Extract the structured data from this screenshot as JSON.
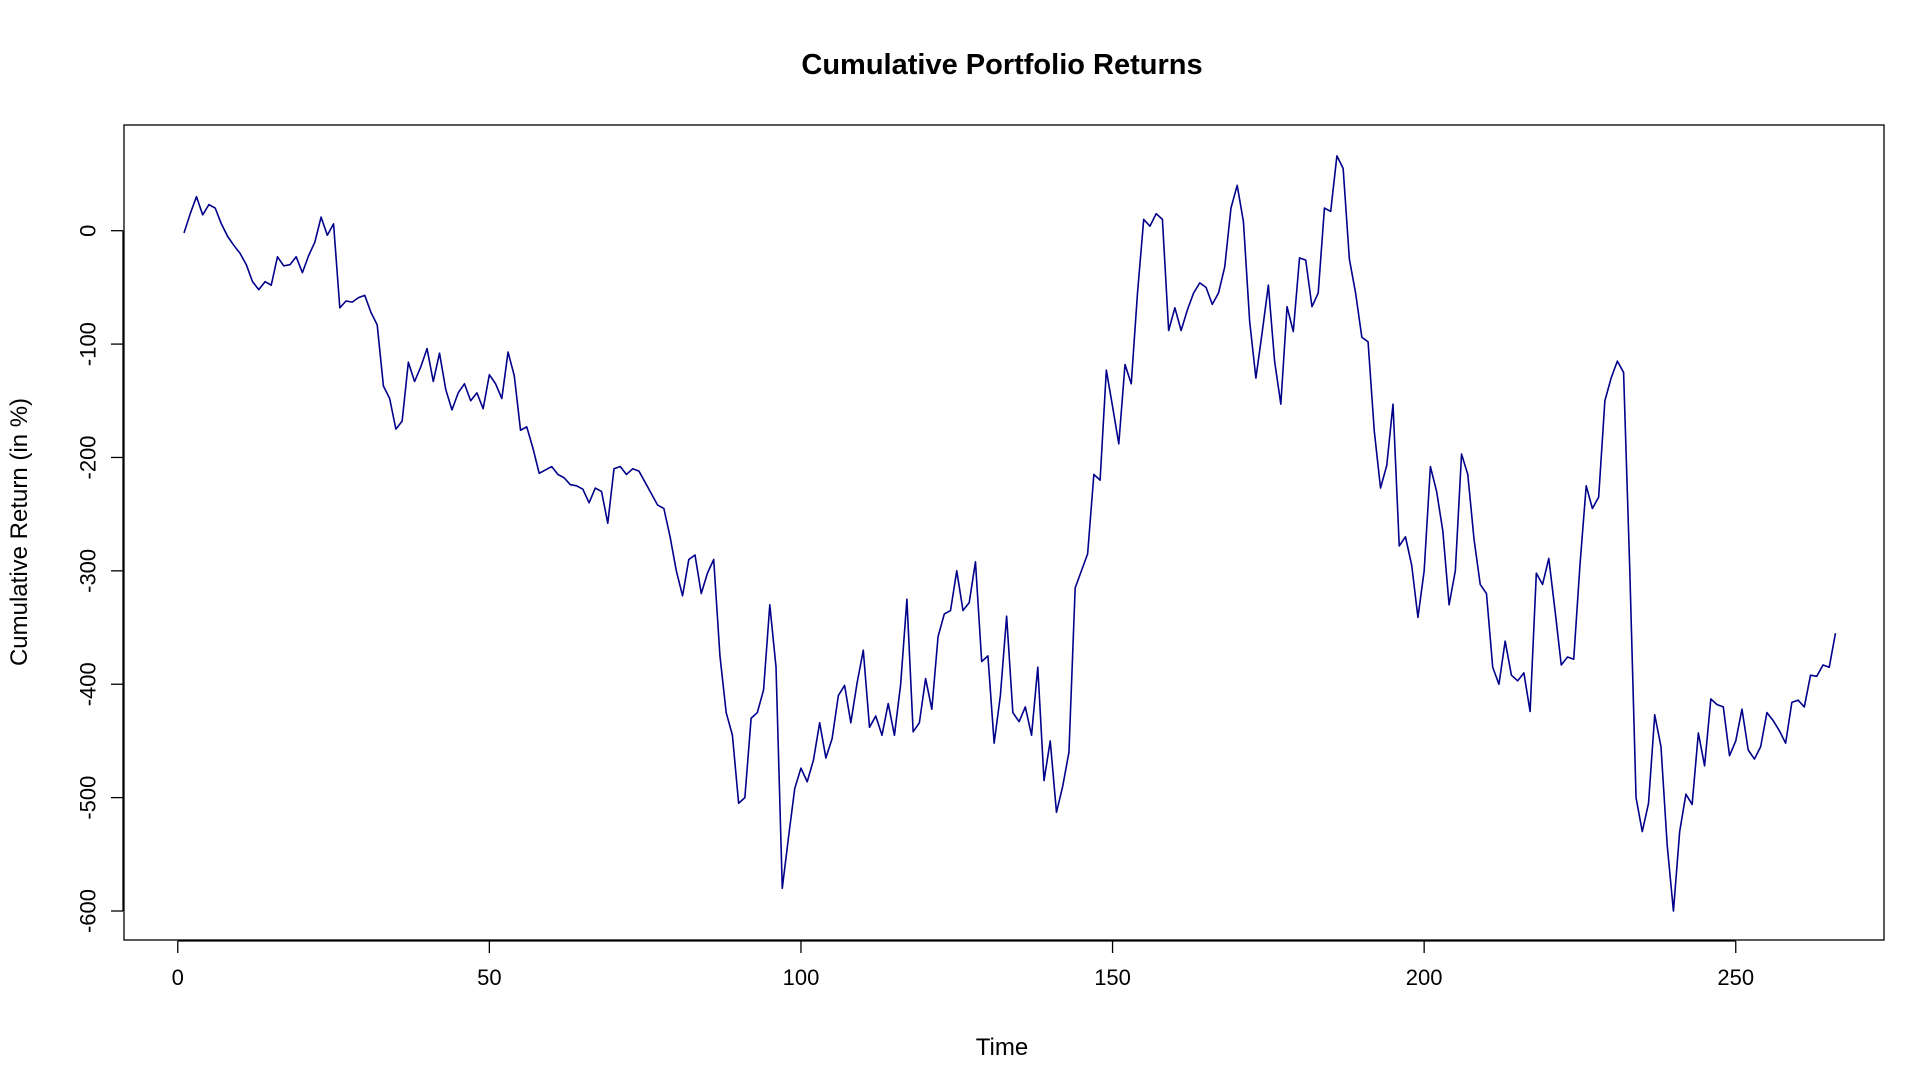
{
  "chart_data": {
    "type": "line",
    "title": "Cumulative Portfolio Returns",
    "xlabel": "Time",
    "ylabel": "Cumulative Return (in %)",
    "xlim": [
      1,
      264
    ],
    "ylim": [
      -600,
      65
    ],
    "xticks": [
      0,
      50,
      100,
      150,
      200,
      250
    ],
    "yticks": [
      0,
      -100,
      -200,
      -300,
      -400,
      -500,
      -600
    ],
    "grid": false,
    "legend": "none",
    "line_color": "#00008B",
    "series": [
      {
        "x_start": 1,
        "values": [
          -2,
          15,
          30,
          14,
          23,
          20,
          6,
          -5,
          -13,
          -20,
          -30,
          -45,
          -52,
          -45,
          -48,
          -23,
          -31,
          -30,
          -23,
          -37,
          -22,
          -10,
          12,
          -4,
          6,
          -68,
          -62,
          -63,
          -59,
          -57,
          -72,
          -83,
          -137,
          -148,
          -175,
          -168,
          -116,
          -133,
          -120,
          -104,
          -133,
          -108,
          -140,
          -158,
          -143,
          -135,
          -150,
          -143,
          -157,
          -127,
          -135,
          -148,
          -107,
          -128,
          -176,
          -173,
          -192,
          -214,
          -211,
          -208,
          -215,
          -218,
          -224,
          -225,
          -228,
          -240,
          -227,
          -230,
          -258,
          -210,
          -208,
          -215,
          -210,
          -212,
          -222,
          -232,
          -242,
          -245,
          -270,
          -300,
          -322,
          -290,
          -286,
          -320,
          -302,
          -290,
          -375,
          -425,
          -445,
          -505,
          -500,
          -430,
          -425,
          -405,
          -330,
          -385,
          -580,
          -535,
          -492,
          -474,
          -486,
          -467,
          -434,
          -465,
          -448,
          -410,
          -401,
          -434,
          -399,
          -370,
          -438,
          -428,
          -445,
          -417,
          -445,
          -400,
          -325,
          -442,
          -434,
          -395,
          -422,
          -358,
          -338,
          -335,
          -300,
          -335,
          -328,
          -292,
          -380,
          -375,
          -452,
          -410,
          -340,
          -425,
          -433,
          -420,
          -445,
          -385,
          -485,
          -450,
          -513,
          -490,
          -460,
          -315,
          -300,
          -285,
          -215,
          -220,
          -123,
          -155,
          -188,
          -118,
          -135,
          -55,
          10,
          4,
          15,
          10,
          -88,
          -68,
          -88,
          -70,
          -55,
          -46,
          -50,
          -65,
          -55,
          -32,
          20,
          40,
          8,
          -80,
          -130,
          -90,
          -48,
          -115,
          -153,
          -67,
          -89,
          -24,
          -26,
          -67,
          -55,
          20,
          17,
          66,
          55,
          -25,
          -55,
          -94,
          -98,
          -177,
          -227,
          -207,
          -153,
          -278,
          -270,
          -295,
          -341,
          -300,
          -208,
          -230,
          -265,
          -330,
          -300,
          -197,
          -215,
          -272,
          -312,
          -320,
          -385,
          -400,
          -362,
          -392,
          -397,
          -390,
          -424,
          -302,
          -312,
          -289,
          -335,
          -383,
          -376,
          -378,
          -295,
          -225,
          -245,
          -235,
          -150,
          -130,
          -115,
          -125,
          -300,
          -500,
          -530,
          -505,
          -427,
          -455,
          -542,
          -600,
          -530,
          -497,
          -506,
          -443,
          -472,
          -413,
          -418,
          -420,
          -463,
          -450,
          -422,
          -458,
          -466,
          -455,
          -425,
          -432,
          -441,
          -452,
          -416,
          -414,
          -420,
          -392,
          -393,
          -383,
          -385,
          -355
        ]
      }
    ]
  }
}
